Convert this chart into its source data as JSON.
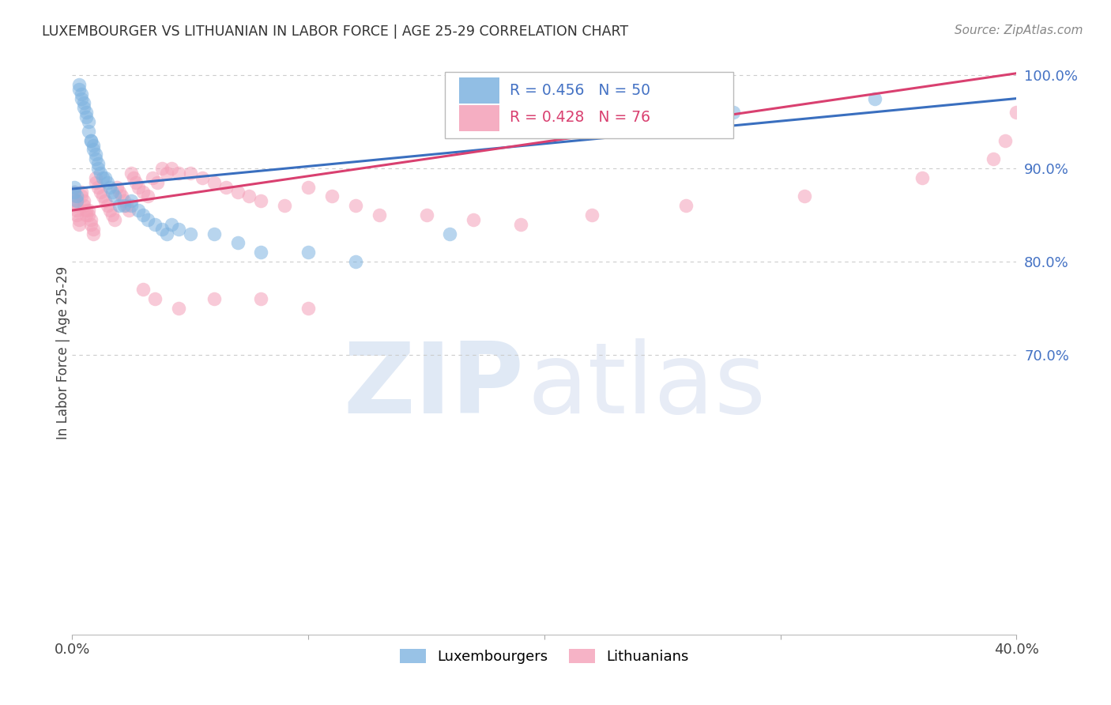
{
  "title": "LUXEMBOURGER VS LITHUANIAN IN LABOR FORCE | AGE 25-29 CORRELATION CHART",
  "source_text": "Source: ZipAtlas.com",
  "ylabel": "In Labor Force | Age 25-29",
  "xlim": [
    0.0,
    0.4
  ],
  "ylim": [
    0.4,
    1.005
  ],
  "blue_R": 0.456,
  "blue_N": 50,
  "pink_R": 0.428,
  "pink_N": 76,
  "blue_color": "#7EB3E0",
  "pink_color": "#F4A0B8",
  "blue_line_color": "#3A6FBF",
  "pink_line_color": "#D94070",
  "legend_label_blue": "Luxembourgers",
  "legend_label_pink": "Lithuanians",
  "grid_color": "#CCCCCC",
  "blue_x": [
    0.001,
    0.001,
    0.002,
    0.002,
    0.003,
    0.003,
    0.004,
    0.004,
    0.005,
    0.005,
    0.006,
    0.006,
    0.007,
    0.007,
    0.008,
    0.008,
    0.009,
    0.009,
    0.01,
    0.01,
    0.011,
    0.011,
    0.012,
    0.013,
    0.014,
    0.015,
    0.016,
    0.017,
    0.018,
    0.02,
    0.022,
    0.025,
    0.025,
    0.028,
    0.03,
    0.032,
    0.035,
    0.038,
    0.04,
    0.042,
    0.045,
    0.05,
    0.06,
    0.07,
    0.08,
    0.1,
    0.12,
    0.16,
    0.28,
    0.34
  ],
  "blue_y": [
    0.88,
    0.875,
    0.87,
    0.865,
    0.99,
    0.985,
    0.98,
    0.975,
    0.97,
    0.965,
    0.96,
    0.955,
    0.95,
    0.94,
    0.93,
    0.93,
    0.925,
    0.92,
    0.915,
    0.91,
    0.905,
    0.9,
    0.895,
    0.89,
    0.89,
    0.885,
    0.88,
    0.875,
    0.87,
    0.86,
    0.86,
    0.865,
    0.86,
    0.855,
    0.85,
    0.845,
    0.84,
    0.835,
    0.83,
    0.84,
    0.835,
    0.83,
    0.83,
    0.82,
    0.81,
    0.81,
    0.8,
    0.83,
    0.96,
    0.975
  ],
  "pink_x": [
    0.001,
    0.001,
    0.001,
    0.002,
    0.002,
    0.002,
    0.003,
    0.003,
    0.004,
    0.004,
    0.005,
    0.005,
    0.006,
    0.006,
    0.007,
    0.007,
    0.008,
    0.008,
    0.009,
    0.009,
    0.01,
    0.01,
    0.011,
    0.012,
    0.013,
    0.014,
    0.015,
    0.016,
    0.017,
    0.018,
    0.019,
    0.02,
    0.021,
    0.022,
    0.023,
    0.024,
    0.025,
    0.026,
    0.027,
    0.028,
    0.03,
    0.032,
    0.034,
    0.036,
    0.038,
    0.04,
    0.042,
    0.045,
    0.05,
    0.055,
    0.06,
    0.065,
    0.07,
    0.075,
    0.08,
    0.09,
    0.1,
    0.11,
    0.12,
    0.13,
    0.15,
    0.17,
    0.19,
    0.22,
    0.26,
    0.31,
    0.36,
    0.39,
    0.395,
    0.4,
    0.03,
    0.035,
    0.045,
    0.06,
    0.08,
    0.1
  ],
  "pink_y": [
    0.875,
    0.87,
    0.865,
    0.86,
    0.855,
    0.85,
    0.845,
    0.84,
    0.875,
    0.87,
    0.865,
    0.86,
    0.855,
    0.85,
    0.855,
    0.85,
    0.845,
    0.84,
    0.835,
    0.83,
    0.89,
    0.885,
    0.88,
    0.875,
    0.87,
    0.865,
    0.86,
    0.855,
    0.85,
    0.845,
    0.88,
    0.875,
    0.87,
    0.865,
    0.86,
    0.855,
    0.895,
    0.89,
    0.885,
    0.88,
    0.875,
    0.87,
    0.89,
    0.885,
    0.9,
    0.895,
    0.9,
    0.895,
    0.895,
    0.89,
    0.885,
    0.88,
    0.875,
    0.87,
    0.865,
    0.86,
    0.88,
    0.87,
    0.86,
    0.85,
    0.85,
    0.845,
    0.84,
    0.85,
    0.86,
    0.87,
    0.89,
    0.91,
    0.93,
    0.96,
    0.77,
    0.76,
    0.75,
    0.76,
    0.76,
    0.75
  ],
  "blue_trend_x": [
    0.0,
    0.4
  ],
  "blue_trend_y": [
    0.878,
    0.975
  ],
  "pink_trend_x": [
    0.0,
    0.4
  ],
  "pink_trend_y": [
    0.855,
    1.002
  ]
}
